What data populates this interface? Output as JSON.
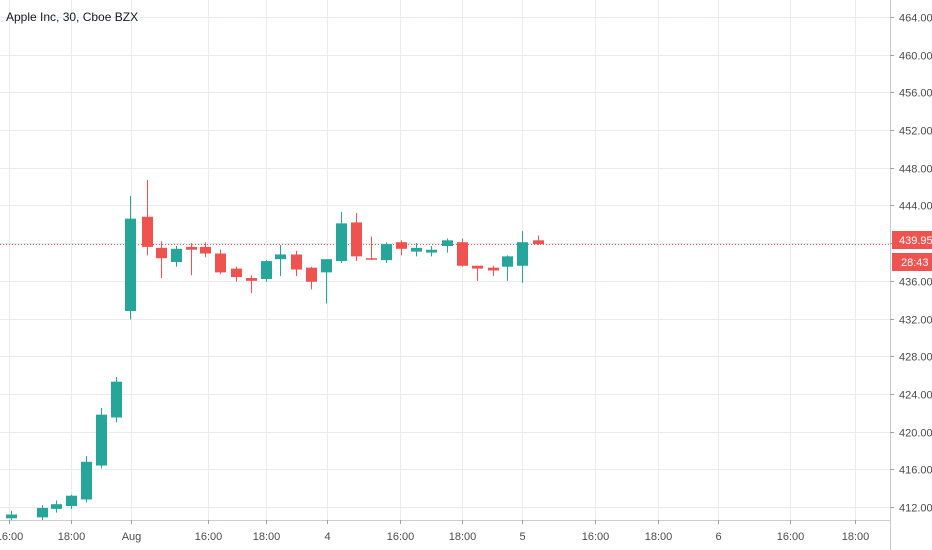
{
  "chart_data": {
    "type": "candlestick",
    "title": "Apple Inc, 30, Cboe BZX",
    "ylim": [
      410.5,
      465.5
    ],
    "y_ticks": [
      "412.00",
      "416.00",
      "420.00",
      "424.00",
      "428.00",
      "432.00",
      "436.00",
      "440.00",
      "444.00",
      "448.00",
      "452.00",
      "456.00",
      "460.00",
      "464.00"
    ],
    "x_ticks": [
      "16:00",
      "18:00",
      "Aug",
      "16:00",
      "18:00",
      "4",
      "16:00",
      "18:00",
      "5",
      "16:00",
      "18:00",
      "6",
      "16:00",
      "18:00"
    ],
    "last_price": "439.95",
    "countdown": "28:43",
    "colors": {
      "up": "#26a69a",
      "down": "#ef5350",
      "grid": "#e8ecf0",
      "price_line": "#ef5350"
    },
    "candles": [
      {
        "x": 10.5,
        "o": 410.8,
        "h": 411.6,
        "l": 410.5,
        "c": 411.2
      },
      {
        "x": 41.5,
        "o": 410.9,
        "h": 412.2,
        "l": 410.6,
        "c": 411.9
      },
      {
        "x": 55.5,
        "o": 411.8,
        "h": 412.7,
        "l": 411.4,
        "c": 412.3
      },
      {
        "x": 70.5,
        "o": 412.1,
        "h": 413.3,
        "l": 411.8,
        "c": 413.2
      },
      {
        "x": 85.5,
        "o": 412.8,
        "h": 417.4,
        "l": 412.5,
        "c": 416.8
      },
      {
        "x": 100.5,
        "o": 416.4,
        "h": 422.5,
        "l": 416.1,
        "c": 421.8
      },
      {
        "x": 115.5,
        "o": 421.5,
        "h": 425.8,
        "l": 421.0,
        "c": 425.3
      },
      {
        "x": 130.0,
        "o": 432.8,
        "h": 445.0,
        "l": 431.9,
        "c": 442.6
      },
      {
        "x": 146.5,
        "o": 442.8,
        "h": 446.7,
        "l": 438.7,
        "c": 439.6
      },
      {
        "x": 160.5,
        "o": 439.5,
        "h": 440.2,
        "l": 436.3,
        "c": 438.4
      },
      {
        "x": 175.5,
        "o": 438.0,
        "h": 439.7,
        "l": 437.5,
        "c": 439.4
      },
      {
        "x": 190.5,
        "o": 439.6,
        "h": 440.0,
        "l": 436.6,
        "c": 439.3
      },
      {
        "x": 205.0,
        "o": 439.6,
        "h": 440.1,
        "l": 438.5,
        "c": 438.9
      },
      {
        "x": 220.0,
        "o": 438.9,
        "h": 439.3,
        "l": 436.7,
        "c": 436.9
      },
      {
        "x": 235.5,
        "o": 437.3,
        "h": 437.5,
        "l": 435.9,
        "c": 436.4
      },
      {
        "x": 250.5,
        "o": 436.3,
        "h": 436.6,
        "l": 434.7,
        "c": 436.0
      },
      {
        "x": 265.5,
        "o": 436.2,
        "h": 438.2,
        "l": 435.9,
        "c": 438.1
      },
      {
        "x": 280.0,
        "o": 438.3,
        "h": 439.8,
        "l": 436.5,
        "c": 438.8
      },
      {
        "x": 295.5,
        "o": 438.8,
        "h": 439.2,
        "l": 436.5,
        "c": 437.2
      },
      {
        "x": 310.5,
        "o": 437.4,
        "h": 437.5,
        "l": 435.1,
        "c": 435.9
      },
      {
        "x": 325.5,
        "o": 436.9,
        "h": 438.3,
        "l": 433.6,
        "c": 438.3
      },
      {
        "x": 340.5,
        "o": 438.1,
        "h": 443.3,
        "l": 437.9,
        "c": 442.1
      },
      {
        "x": 355.5,
        "o": 442.2,
        "h": 443.2,
        "l": 438.1,
        "c": 438.6
      },
      {
        "x": 370.5,
        "o": 438.4,
        "h": 440.7,
        "l": 438.2,
        "c": 438.3
      },
      {
        "x": 385.5,
        "o": 438.2,
        "h": 440.1,
        "l": 437.9,
        "c": 439.9
      },
      {
        "x": 400.5,
        "o": 440.1,
        "h": 440.3,
        "l": 438.7,
        "c": 439.4
      },
      {
        "x": 415.5,
        "o": 439.1,
        "h": 440.0,
        "l": 438.6,
        "c": 439.5
      },
      {
        "x": 430.5,
        "o": 439.0,
        "h": 439.7,
        "l": 438.6,
        "c": 439.3
      },
      {
        "x": 447.0,
        "o": 439.7,
        "h": 440.5,
        "l": 439.0,
        "c": 440.3
      },
      {
        "x": 461.5,
        "o": 440.1,
        "h": 440.5,
        "l": 437.5,
        "c": 437.6
      },
      {
        "x": 476.5,
        "o": 437.6,
        "h": 437.6,
        "l": 436.0,
        "c": 437.3
      },
      {
        "x": 492.5,
        "o": 437.4,
        "h": 437.6,
        "l": 436.5,
        "c": 437.1
      },
      {
        "x": 507.0,
        "o": 437.5,
        "h": 438.7,
        "l": 436.0,
        "c": 438.6
      },
      {
        "x": 522.0,
        "o": 437.6,
        "h": 441.3,
        "l": 435.8,
        "c": 440.1
      },
      {
        "x": 537.5,
        "o": 440.3,
        "h": 440.8,
        "l": 439.8,
        "c": 439.9
      }
    ]
  }
}
